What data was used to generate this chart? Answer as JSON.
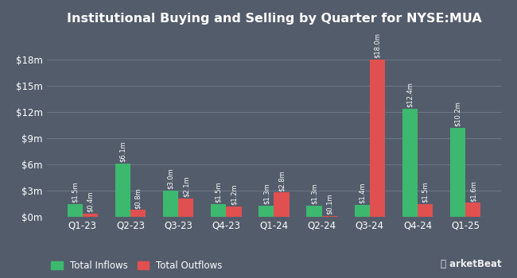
{
  "title": "Institutional Buying and Selling by Quarter for NYSE:MUA",
  "quarters": [
    "Q1-23",
    "Q2-23",
    "Q3-23",
    "Q4-23",
    "Q1-24",
    "Q2-24",
    "Q3-24",
    "Q4-24",
    "Q1-25"
  ],
  "inflows": [
    1.5,
    6.1,
    3.0,
    1.5,
    1.3,
    1.3,
    1.4,
    12.4,
    10.2
  ],
  "outflows": [
    0.4,
    0.8,
    2.1,
    1.2,
    2.8,
    0.1,
    18.0,
    1.5,
    1.6
  ],
  "inflow_labels": [
    "$1.5m",
    "$6.1m",
    "$3.0m",
    "$1.5m",
    "$1.3m",
    "$1.3m",
    "$1.4m",
    "$12.4m",
    "$10.2m"
  ],
  "outflow_labels": [
    "$0.4m",
    "$0.8m",
    "$2.1m",
    "$1.2m",
    "$2.8m",
    "$0.1m",
    "$18.0m",
    "$1.5m",
    "$1.6m"
  ],
  "inflow_color": "#3cb96e",
  "outflow_color": "#e05050",
  "background_color": "#535c6b",
  "plot_bg_color": "#535c6b",
  "text_color": "#ffffff",
  "grid_color": "#6b7787",
  "yticks": [
    0,
    3,
    6,
    9,
    12,
    15,
    18
  ],
  "ytick_labels": [
    "$0m",
    "$3m",
    "$6m",
    "$9m",
    "$12m",
    "$15m",
    "$18m"
  ],
  "ylim": [
    0,
    21
  ],
  "legend_inflow": "Total Inflows",
  "legend_outflow": "Total Outflows",
  "bar_width": 0.32,
  "label_fontsize": 6.0,
  "tick_fontsize": 8.5,
  "title_fontsize": 11.5
}
